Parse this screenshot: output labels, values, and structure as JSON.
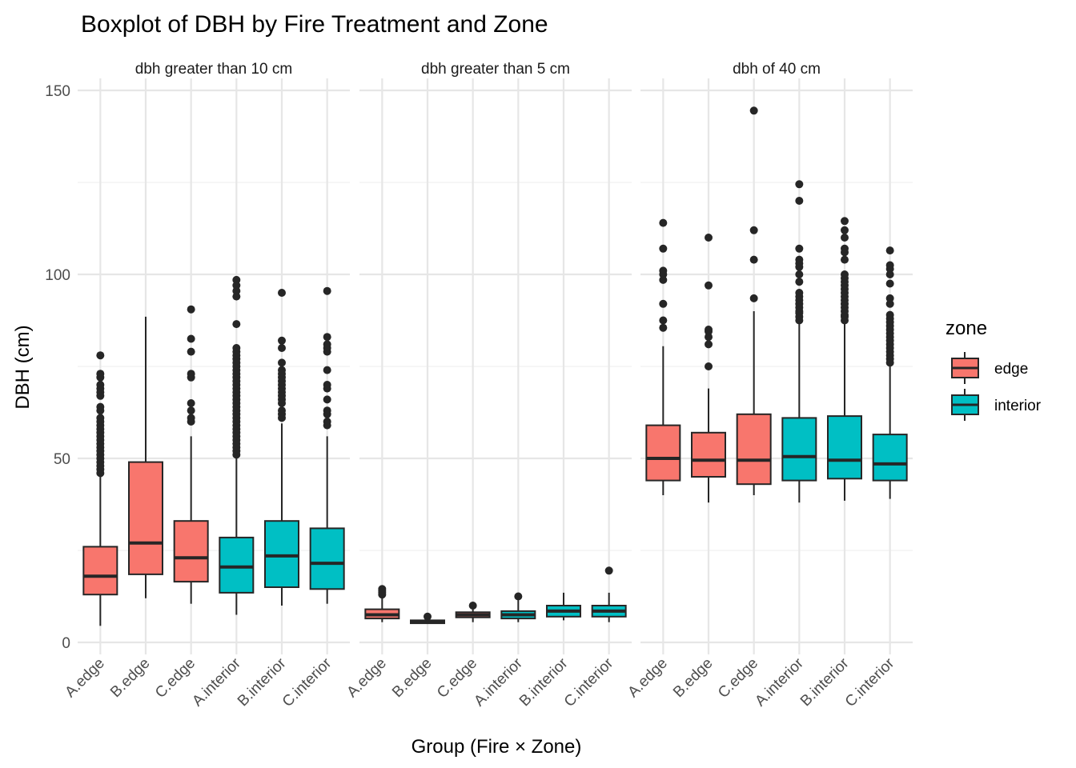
{
  "chart_data": {
    "type": "boxplot",
    "title": "Boxplot of DBH by Fire Treatment and Zone",
    "xlabel": "Group (Fire × Zone)",
    "ylabel": "DBH (cm)",
    "ylim": [
      -3,
      150
    ],
    "yticks": [
      0,
      50,
      100,
      150
    ],
    "grid": true,
    "legend": {
      "title": "zone",
      "placement": "right",
      "entries": [
        {
          "label": "edge",
          "color": "#F8766D"
        },
        {
          "label": "interior",
          "color": "#00BFC4"
        }
      ]
    },
    "categories": [
      "A.edge",
      "B.edge",
      "C.edge",
      "A.interior",
      "B.interior",
      "C.interior"
    ],
    "panels": [
      {
        "name": "dbh greater than 10 cm",
        "boxes": [
          {
            "group": "A.edge",
            "zone": "edge",
            "min": 4.5,
            "q1": 13,
            "median": 18,
            "q3": 26,
            "max": 45.5,
            "outliers": [
              46,
              47,
              48,
              49,
              50,
              51,
              52,
              53,
              54,
              55,
              56,
              57,
              58,
              59,
              60,
              61,
              63,
              64,
              67,
              68,
              69,
              70,
              72,
              73,
              78
            ]
          },
          {
            "group": "B.edge",
            "zone": "edge",
            "min": 12,
            "q1": 18.5,
            "median": 27,
            "q3": 49,
            "max": 88.5,
            "outliers": []
          },
          {
            "group": "C.edge",
            "zone": "edge",
            "min": 10.5,
            "q1": 16.5,
            "median": 23,
            "q3": 33,
            "max": 56,
            "outliers": [
              60,
              61,
              63,
              65,
              72,
              73,
              79,
              82.5,
              90.5
            ]
          },
          {
            "group": "A.interior",
            "zone": "interior",
            "min": 7.5,
            "q1": 13.5,
            "median": 20.5,
            "q3": 28.5,
            "max": 50,
            "outliers": [
              51,
              52,
              53,
              54,
              55,
              56,
              57,
              58,
              59,
              60,
              61,
              62,
              63,
              64,
              65,
              66,
              67,
              68,
              69,
              70,
              71,
              72,
              73,
              74,
              75,
              76,
              77,
              78,
              79,
              80,
              86.5,
              94,
              95.5,
              97,
              98.5
            ]
          },
          {
            "group": "B.interior",
            "zone": "interior",
            "min": 10,
            "q1": 15,
            "median": 23.5,
            "q3": 33,
            "max": 59.5,
            "outliers": [
              61,
              62,
              63,
              65,
              66,
              67,
              68,
              69,
              70,
              71,
              72,
              73,
              74,
              76,
              80,
              82,
              95
            ]
          },
          {
            "group": "C.interior",
            "zone": "interior",
            "min": 10.5,
            "q1": 14.5,
            "median": 21.5,
            "q3": 31,
            "max": 56,
            "outliers": [
              59,
              60,
              62,
              63,
              66,
              69,
              70,
              74,
              79,
              80,
              81,
              83,
              95.5
            ]
          }
        ]
      },
      {
        "name": "dbh greater than 5 cm",
        "boxes": [
          {
            "group": "A.edge",
            "zone": "edge",
            "min": 5.5,
            "q1": 6.5,
            "median": 7.5,
            "q3": 9,
            "max": 12.5,
            "outliers": [
              13,
              13.5,
              14,
              14.5
            ]
          },
          {
            "group": "B.edge",
            "zone": "edge",
            "min": 5,
            "q1": 5.2,
            "median": 5.7,
            "q3": 6,
            "max": 6.5,
            "outliers": [
              7
            ]
          },
          {
            "group": "C.edge",
            "zone": "edge",
            "min": 5.5,
            "q1": 6.8,
            "median": 7.5,
            "q3": 8.2,
            "max": 9.5,
            "outliers": [
              10
            ]
          },
          {
            "group": "A.interior",
            "zone": "interior",
            "min": 5.5,
            "q1": 6.5,
            "median": 7.5,
            "q3": 8.5,
            "max": 11.5,
            "outliers": [
              12.5
            ]
          },
          {
            "group": "B.interior",
            "zone": "interior",
            "min": 6,
            "q1": 7,
            "median": 8.5,
            "q3": 10,
            "max": 13.5,
            "outliers": []
          },
          {
            "group": "C.interior",
            "zone": "interior",
            "min": 5.5,
            "q1": 7,
            "median": 8.5,
            "q3": 10,
            "max": 13.5,
            "outliers": [
              19.5
            ]
          }
        ]
      },
      {
        "name": "dbh of 40 cm",
        "boxes": [
          {
            "group": "A.edge",
            "zone": "edge",
            "min": 40,
            "q1": 44,
            "median": 50,
            "q3": 59,
            "max": 80.5,
            "outliers": [
              85.5,
              87.5,
              92,
              98.5,
              100,
              101,
              107,
              114
            ]
          },
          {
            "group": "B.edge",
            "zone": "edge",
            "min": 38,
            "q1": 45,
            "median": 49.5,
            "q3": 57,
            "max": 69,
            "outliers": [
              75,
              81,
              83,
              84.5,
              85,
              97,
              110
            ]
          },
          {
            "group": "C.edge",
            "zone": "edge",
            "min": 40,
            "q1": 43,
            "median": 49.5,
            "q3": 62,
            "max": 90,
            "outliers": [
              93.5,
              104,
              112,
              144.5
            ]
          },
          {
            "group": "A.interior",
            "zone": "interior",
            "min": 38,
            "q1": 44,
            "median": 50.5,
            "q3": 61,
            "max": 86.5,
            "outliers": [
              87.5,
              88.5,
              89.5,
              90,
              91,
              92,
              93,
              94,
              95,
              98,
              100,
              102,
              103,
              104,
              107,
              120,
              124.5
            ]
          },
          {
            "group": "B.interior",
            "zone": "interior",
            "min": 38.5,
            "q1": 44.5,
            "median": 49.5,
            "q3": 61.5,
            "max": 87,
            "outliers": [
              87.5,
              88.5,
              89,
              90,
              91,
              92,
              93,
              94,
              95,
              96,
              97,
              98,
              99,
              100,
              104,
              106,
              107,
              110,
              112,
              114.5
            ]
          },
          {
            "group": "C.interior",
            "zone": "interior",
            "min": 39,
            "q1": 44,
            "median": 48.5,
            "q3": 56.5,
            "max": 75.5,
            "outliers": [
              76,
              77,
              78,
              79,
              80,
              81,
              82,
              83,
              84,
              85,
              86,
              87,
              88,
              89,
              92,
              93.5,
              97.5,
              100,
              101.5,
              102.5,
              106.5
            ]
          }
        ]
      }
    ]
  }
}
